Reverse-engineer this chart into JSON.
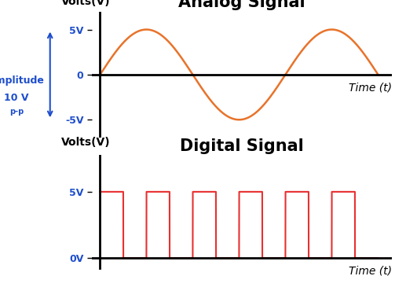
{
  "analog_title": "Analog Signal",
  "digital_title": "Digital Signal",
  "analog_ylabel": "Volts(V)",
  "digital_ylabel": "Volts(V)",
  "xlabel": "Time (t)",
  "analog_amplitude": 5,
  "analog_frequency": 1.5,
  "analog_color": "#E8732A",
  "digital_color": "#E83030",
  "axis_color": "#000000",
  "label_color_blue": "#1E4ECC",
  "sine_ylim": [
    -7,
    7
  ],
  "square_ylim": [
    -0.8,
    7
  ],
  "amplitude_label": "Amplitude",
  "amplitude_sub": "10 V",
  "amplitude_sub2": "p-p",
  "tick_5v": "5V",
  "tick_neg5v": "-5V",
  "tick_0": "0",
  "tick_5v_digital": "5V",
  "tick_0v_digital": "0V",
  "title_fontsize": 15,
  "label_fontsize": 10,
  "tick_fontsize": 9,
  "bg_color": "#FFFFFF"
}
